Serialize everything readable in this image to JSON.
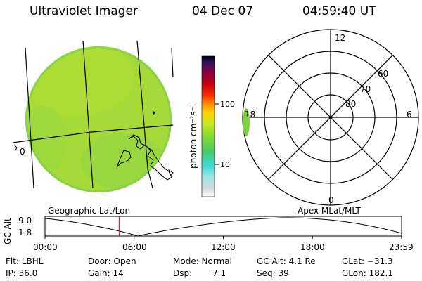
{
  "header": {
    "instrument": "Ultraviolet Imager",
    "date": "04 Dec 07",
    "time": "04:59:40 UT"
  },
  "colorbar": {
    "unit_label": "photon cm⁻²s⁻¹",
    "ticks": [
      "100",
      "10"
    ]
  },
  "polar_plot": {
    "label": "Apex MLat/MLT",
    "mlt_labels": {
      "top": "12",
      "left": "18",
      "right": "6",
      "bottom": "0"
    },
    "mlat_labels": [
      "60",
      "70",
      "80"
    ]
  },
  "geo_plot": {
    "label": "Geographic Lat/Lon",
    "edge_label": "0"
  },
  "altitude_plot": {
    "ylabel": "GC Alt",
    "yticks": [
      "9.0",
      "1.8"
    ],
    "xticks": [
      "00:00",
      "06:00",
      "12:00",
      "18:00",
      "23:59"
    ],
    "current_time_fraction": 0.208
  },
  "status": {
    "flt": "Flt: LBHL",
    "door": "Door: Open",
    "mode": "Mode: Normal",
    "gc_alt": "GC Alt: 4.1 Re",
    "glat": "GLat: −31.3",
    "ip": "IP: 36.0",
    "gain": "Gain: 14",
    "dsp_label": "Dsp:",
    "dsp_value": "7.1",
    "seq": "Seq: 39",
    "glon": "GLon: 182.1"
  },
  "colors": {
    "disk_fill": "#a8dc34",
    "disk_edge": "#7fd248",
    "time_marker": "#e02020"
  }
}
